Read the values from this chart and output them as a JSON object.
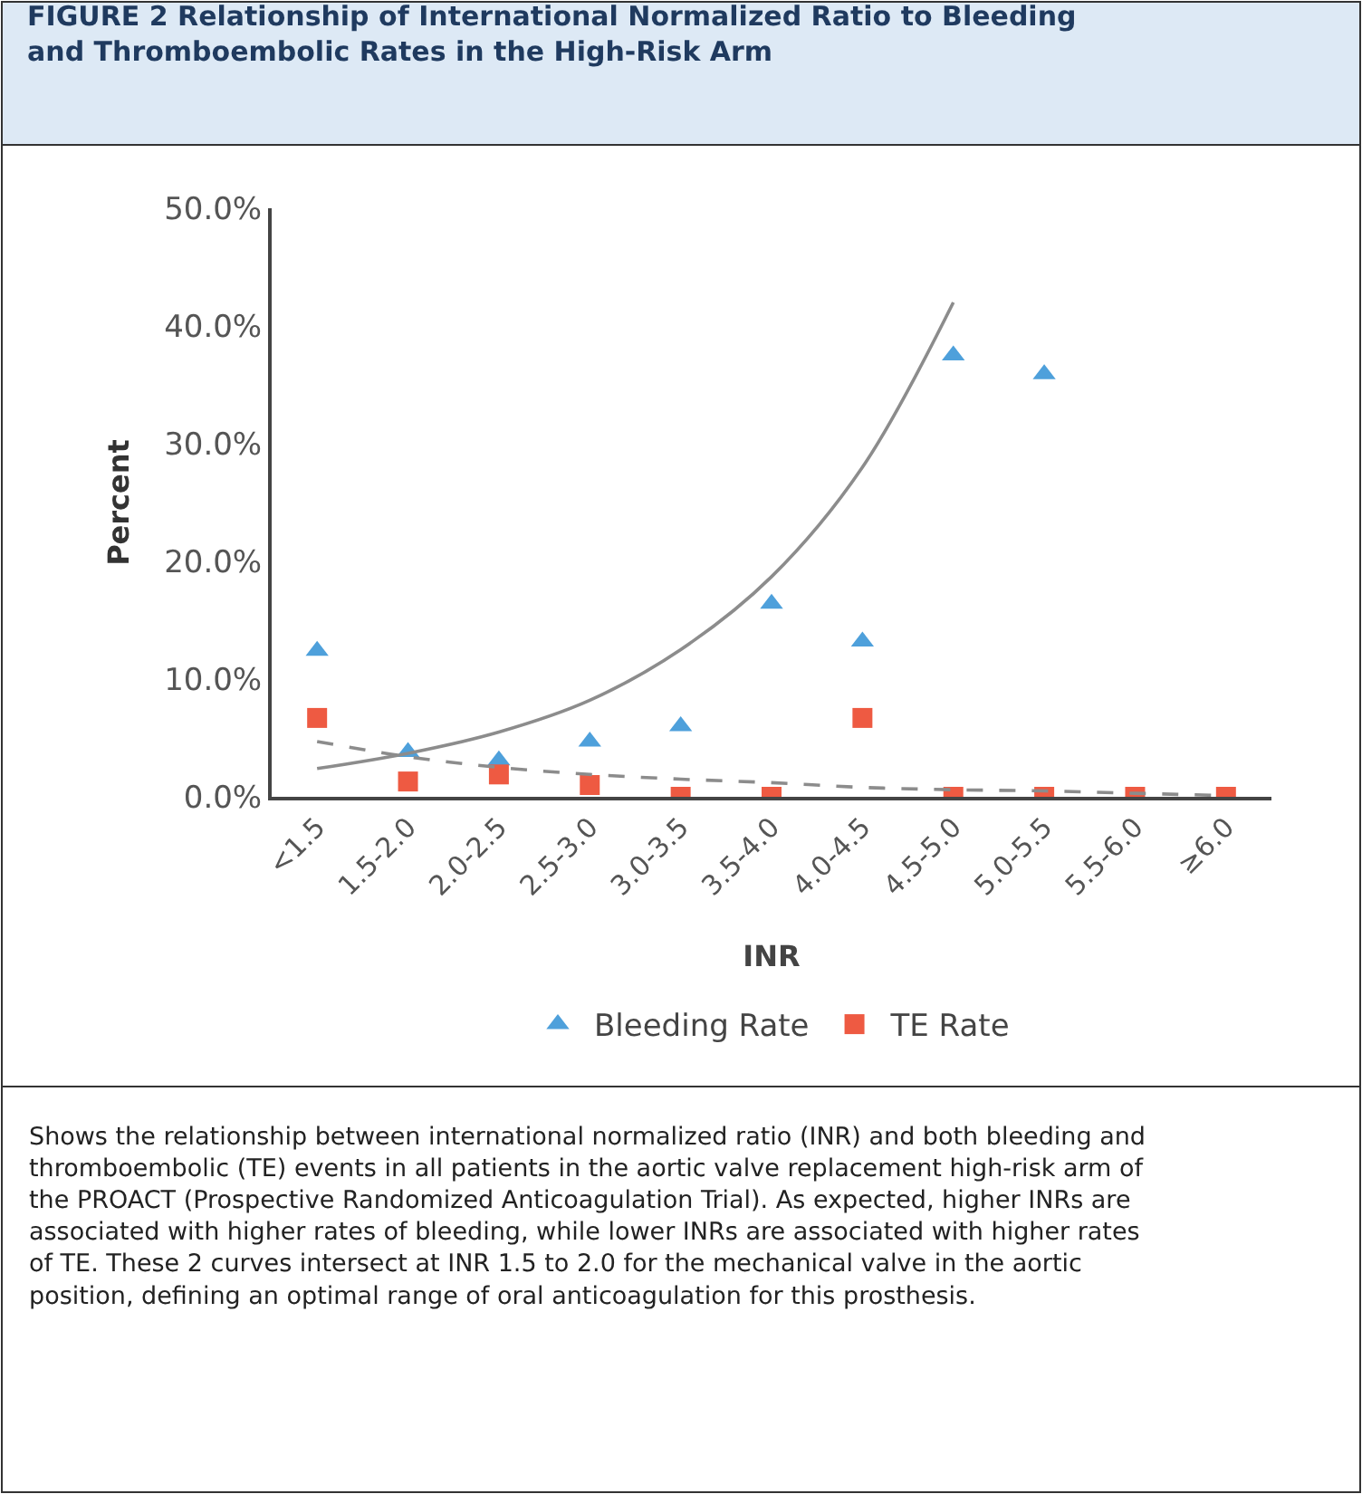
{
  "chart_data": {
    "type": "scatter",
    "title": "FIGURE 2 Relationship of International Normalized Ratio to Bleeding and Thromboembolic Rates in the High-Risk Arm",
    "xlabel": "INR",
    "ylabel": "Percent",
    "categories": [
      "<1.5",
      "1.5-2.0",
      "2.0-2.5",
      "2.5-3.0",
      "3.0-3.5",
      "3.5-4.0",
      "4.0-4.5",
      "4.5-5.0",
      "5.0-5.5",
      "5.5-6.0",
      "≥6.0"
    ],
    "series": [
      {
        "name": "Bleeding Rate",
        "marker": "triangle",
        "color": "#4ea0db",
        "values": [
          12.4,
          3.8,
          3.1,
          4.7,
          6.0,
          16.4,
          13.2,
          37.5,
          35.9,
          null,
          null
        ]
      },
      {
        "name": "TE Rate",
        "marker": "square",
        "color": "#ee5a42",
        "values": [
          6.7,
          1.3,
          1.9,
          1.0,
          0,
          0,
          6.7,
          0,
          0,
          0,
          0
        ]
      },
      {
        "type": "line",
        "line_style": "solid",
        "color": "#8c8c8c",
        "values": [
          2.4,
          3.7,
          5.5,
          8.2,
          12.5,
          18.7,
          28,
          42,
          null,
          null,
          null
        ]
      },
      {
        "type": "line",
        "line_style": "dashed",
        "color": "#8c8c8c",
        "values": [
          4.7,
          3.4,
          2.5,
          1.9,
          1.5,
          1.2,
          0.8,
          0.6,
          0.5,
          0.3,
          0.1
        ]
      }
    ],
    "ylim": [
      0,
      50
    ],
    "yticks": [
      {
        "value": 0,
        "label": "0.0%"
      },
      {
        "value": 10,
        "label": "10.0%"
      },
      {
        "value": 20,
        "label": "20.0%"
      },
      {
        "value": 30,
        "label": "30.0%"
      },
      {
        "value": 40,
        "label": "40.0%"
      },
      {
        "value": 50,
        "label": "50.0%"
      }
    ],
    "legend": "bottom",
    "annotations": [
      "Shows the relationship between international normalized ratio (INR) and both bleeding and thromboembolic (TE) events in all patients in the aortic valve replacement high-risk arm of the PROACT (Prospective Randomized Anticoagulation Trial). As expected, higher INRs are associated with higher rates of bleeding, while lower INRs are associated with higher rates of TE. These 2 curves intersect at INR 1.5 to 2.0 for the mechanical valve in the aortic position, defining an optimal range of oral anticoagulation for this prosthesis."
    ]
  }
}
